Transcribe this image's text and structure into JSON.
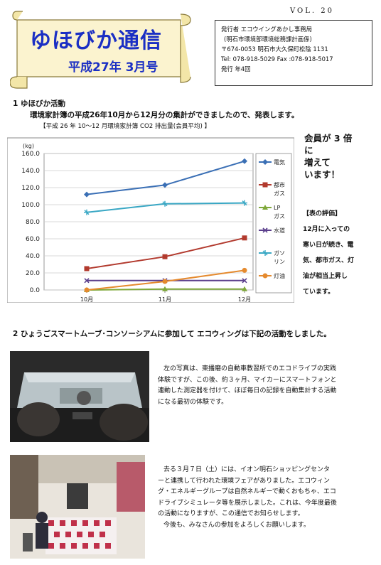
{
  "header": {
    "title": "ゆほびか通信",
    "issue": "平成27年 3月号",
    "vol": "VOL. 20"
  },
  "publisher": {
    "line1": "発行者 エコウイングあかし事務局",
    "line2": "(明石市環境部環境総務課計画係)",
    "line3": "〒674-0053 明石市大久保町松陰 1131",
    "line4": "Tel: 078-918-5029 Fax :078-918-5017",
    "line5": "発行 年4回"
  },
  "section1": {
    "heading": "1 ゆほびか活動",
    "lead": "環境家計簿の平成26年10月から12月分の集計ができましたので、発表します。",
    "chart_caption": "【平成 26 年 10～12 月環境家計簿 CO2 排出量(会員平均) 】"
  },
  "side": {
    "line1": "会員が 3 倍",
    "line2": "に",
    "line3": "増えて",
    "line4": "います！",
    "eval_head": "【表の評価】",
    "eval1": "12月に入っての",
    "eval2": "寒い日が続き、電",
    "eval3": "気、都市ガス、灯",
    "eval4": "油が相当上昇し",
    "eval5": "ています。"
  },
  "section2": {
    "heading": "2 ひょうごスマートムーブ･コンソーシアムに参加して エコウィングは下記の活動をしました。",
    "para1": [
      "左の写真は、東播磨の自動車教習所でのエコドライブの実践",
      "体験ですが、この後、約３ヶ月、マイカーにスマートフォンと",
      "連動した測定器を付けて、ほぼ毎日の記録を自動集計する活動",
      "になる最初の体験です。"
    ],
    "para2": [
      "去る３月７日（土）には、イオン明石ショッピングセンタ",
      "ーと連携して行われた環境フェアがありました。エコウィン",
      "グ・エネルギーグループは自然ネルギーで動くおもちゃ、エコ",
      "ドライブシミュレータ等を展示しました。これは、今年度最後",
      "の活動になりますが、この通信でお知らせします。",
      "今後も、みなさんの参加をよろしくお願いします。"
    ]
  },
  "chart_data": {
    "type": "line",
    "ylabel": "(kg)",
    "categories": [
      "10月",
      "11月",
      "12月"
    ],
    "ylim": [
      0,
      160
    ],
    "yticks": [
      "0.0",
      "20.0",
      "40.0",
      "60.0",
      "80.0",
      "100.0",
      "120.0",
      "140.0",
      "160.0"
    ],
    "grid": true,
    "legend_position": "right",
    "series": [
      {
        "name": "電気",
        "values": [
          112,
          123,
          151
        ],
        "color": "#3a6fb5",
        "marker": "diamond"
      },
      {
        "name": "都市ガス",
        "values": [
          25,
          39,
          61
        ],
        "color": "#b23a2e",
        "marker": "square"
      },
      {
        "name": "LPガス",
        "values": [
          0,
          1,
          1
        ],
        "color": "#7fa83a",
        "marker": "triangle"
      },
      {
        "name": "水道",
        "values": [
          11,
          11,
          11
        ],
        "color": "#5b3f8c",
        "marker": "x"
      },
      {
        "name": "ガソリン",
        "values": [
          91,
          101,
          102
        ],
        "color": "#39a7c4",
        "marker": "star"
      },
      {
        "name": "灯油",
        "values": [
          0,
          10,
          23
        ],
        "color": "#e58a2e",
        "marker": "circle"
      }
    ]
  }
}
